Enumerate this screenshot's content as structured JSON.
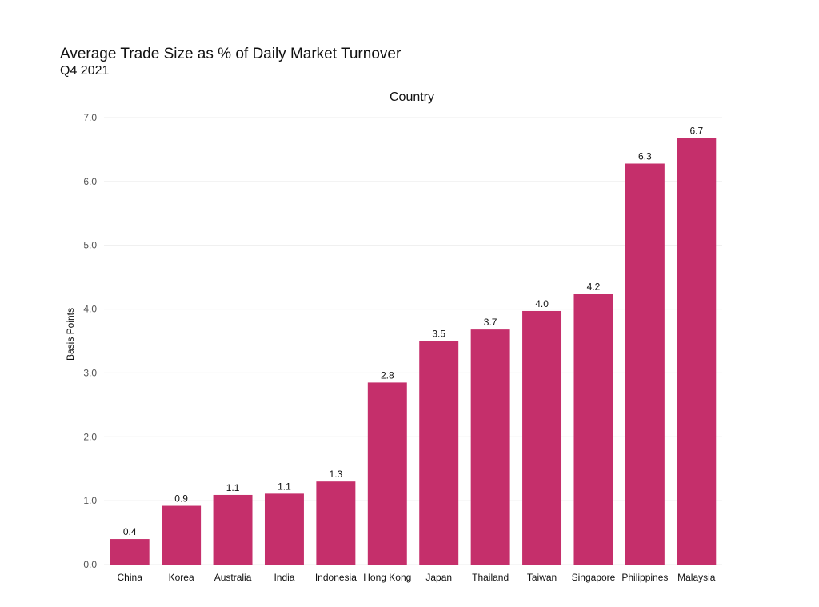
{
  "chart_data": {
    "type": "bar",
    "title": "Average Trade Size as % of Daily Market Turnover",
    "subtitle": "Q4 2021",
    "top_label": "Country",
    "ylabel": "Basis Points",
    "xlabel": "",
    "ylim": [
      0,
      7
    ],
    "yticks": [
      "0.0",
      "1.0",
      "2.0",
      "3.0",
      "4.0",
      "5.0",
      "6.0",
      "7.0"
    ],
    "categories": [
      "China",
      "Korea",
      "Australia",
      "India",
      "Indonesia",
      "Hong Kong",
      "Japan",
      "Thailand",
      "Taiwan",
      "Singapore",
      "Philippines",
      "Malaysia"
    ],
    "values": [
      0.4,
      0.92,
      1.09,
      1.11,
      1.3,
      2.85,
      3.5,
      3.68,
      3.97,
      4.24,
      6.28,
      6.68
    ],
    "value_labels": [
      "0.4",
      "0.9",
      "1.1",
      "1.1",
      "1.3",
      "2.8",
      "3.5",
      "3.7",
      "4.0",
      "4.2",
      "6.3",
      "6.7"
    ],
    "bar_color": "#c52f6b",
    "grid": true,
    "legend": "none"
  }
}
